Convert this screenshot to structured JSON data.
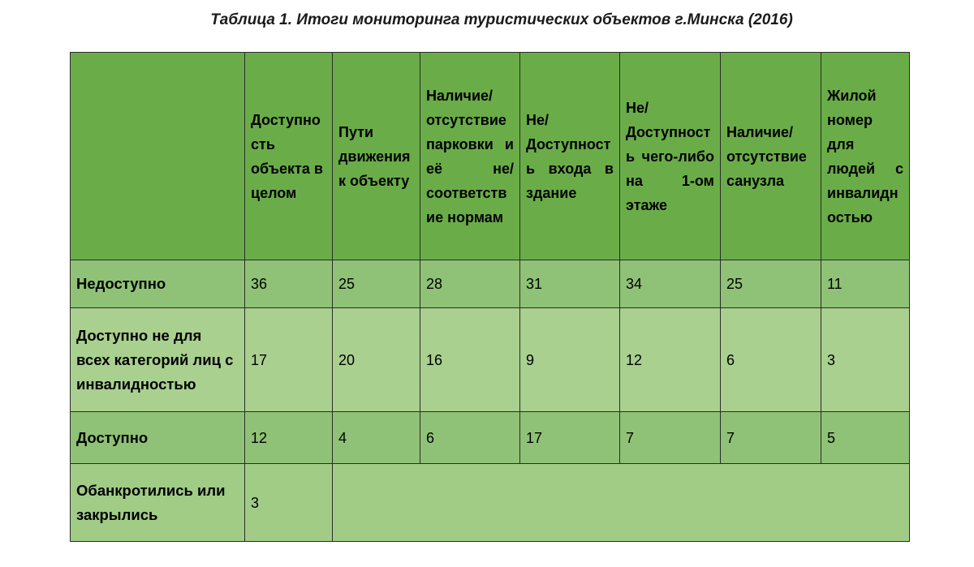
{
  "title": "Таблица 1. Итоги мониторинга туристических объектов г.Минска (2016)",
  "table": {
    "columns": [
      "",
      "Доступность объекта в целом",
      "Пути движения к объекту",
      "Наличие/ отсутствие парковки и её не/соответствие нормам",
      "Не/Доступность входа в здание",
      "Не/Доступность чего-либо на 1-ом этаже",
      "Наличие/ отсутствие санузла",
      "Жилой номер для людей с инвалидностью"
    ],
    "rows": [
      {
        "label": "Недоступно",
        "values": [
          "36",
          "25",
          "28",
          "31",
          "34",
          "25",
          "11"
        ]
      },
      {
        "label": "Доступно не для всех категорий лиц с инвалидностью",
        "values": [
          "17",
          "20",
          "16",
          "9",
          "12",
          "6",
          "3"
        ]
      },
      {
        "label": "Доступно",
        "values": [
          "12",
          "4",
          "6",
          "17",
          "7",
          "7",
          "5"
        ]
      },
      {
        "label": "Обанкротились или закрылись",
        "values": [
          "3"
        ]
      }
    ]
  },
  "colors": {
    "header_bg": "#6aad48",
    "row_dark": "#8fc276",
    "row_light": "#a9d08f",
    "border": "#2b2b2b"
  }
}
